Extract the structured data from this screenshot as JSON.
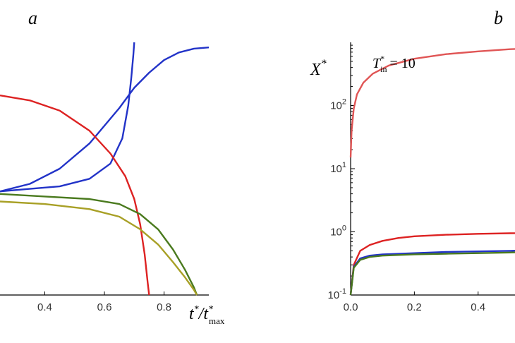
{
  "chart_data": [
    {
      "panel": "a",
      "type": "line",
      "xlabel": "t*/t*max",
      "xlim": [
        0.25,
        0.95
      ],
      "ylim": [
        0,
        1
      ],
      "x_ticks": [
        "0.4",
        "0.6",
        "0.8"
      ],
      "series": [
        {
          "color": "#2233c8",
          "x": [
            0.25,
            0.35,
            0.45,
            0.55,
            0.62,
            0.66,
            0.68,
            0.69,
            0.697,
            0.7
          ],
          "y": [
            0.41,
            0.42,
            0.43,
            0.46,
            0.52,
            0.62,
            0.75,
            0.86,
            0.95,
            1.0
          ]
        },
        {
          "color": "#2233c8",
          "x": [
            0.25,
            0.35,
            0.45,
            0.55,
            0.65,
            0.7,
            0.75,
            0.8,
            0.85,
            0.9,
            0.95
          ],
          "y": [
            0.41,
            0.44,
            0.5,
            0.6,
            0.74,
            0.82,
            0.88,
            0.93,
            0.96,
            0.975,
            0.98
          ]
        },
        {
          "color": "#dd2222",
          "x": [
            0.25,
            0.35,
            0.45,
            0.55,
            0.62,
            0.67,
            0.7,
            0.72,
            0.735,
            0.745,
            0.75
          ],
          "y": [
            0.79,
            0.77,
            0.73,
            0.65,
            0.56,
            0.47,
            0.38,
            0.28,
            0.16,
            0.05,
            0.0
          ]
        },
        {
          "color": "#4a7a1e",
          "x": [
            0.25,
            0.4,
            0.55,
            0.65,
            0.72,
            0.78,
            0.83,
            0.87,
            0.9,
            0.91
          ],
          "y": [
            0.4,
            0.39,
            0.38,
            0.36,
            0.32,
            0.26,
            0.18,
            0.1,
            0.03,
            0.0
          ]
        },
        {
          "color": "#a8a026",
          "x": [
            0.25,
            0.4,
            0.55,
            0.65,
            0.72,
            0.78,
            0.83,
            0.87,
            0.9,
            0.91
          ],
          "y": [
            0.37,
            0.36,
            0.34,
            0.31,
            0.26,
            0.2,
            0.13,
            0.07,
            0.02,
            0.0
          ]
        }
      ]
    },
    {
      "panel": "b",
      "type": "line",
      "ylabel": "X*",
      "yscale": "log",
      "annotation": "T*in = 10",
      "xlim": [
        0.0,
        0.56
      ],
      "ylim": [
        0.1,
        1000
      ],
      "x_ticks": [
        "0.0",
        "0.2",
        "0.4"
      ],
      "y_ticks": [
        "10-1",
        "100",
        "101",
        "102"
      ],
      "series": [
        {
          "color": "#e05555",
          "x": [
            0.0,
            0.003,
            0.01,
            0.02,
            0.04,
            0.07,
            0.12,
            0.2,
            0.3,
            0.4,
            0.5,
            0.56
          ],
          "y": [
            15,
            40,
            90,
            150,
            230,
            320,
            430,
            550,
            650,
            720,
            780,
            800
          ]
        },
        {
          "color": "#dd2222",
          "x": [
            0.0,
            0.01,
            0.03,
            0.06,
            0.1,
            0.15,
            0.2,
            0.3,
            0.4,
            0.5,
            0.56
          ],
          "y": [
            0.1,
            0.3,
            0.5,
            0.62,
            0.72,
            0.8,
            0.85,
            0.9,
            0.93,
            0.95,
            0.96
          ]
        },
        {
          "color": "#2233c8",
          "x": [
            0.0,
            0.01,
            0.03,
            0.06,
            0.1,
            0.2,
            0.3,
            0.4,
            0.5,
            0.56
          ],
          "y": [
            0.1,
            0.28,
            0.38,
            0.42,
            0.44,
            0.46,
            0.48,
            0.49,
            0.5,
            0.51
          ]
        },
        {
          "color": "#4a7a1e",
          "x": [
            0.0,
            0.01,
            0.03,
            0.06,
            0.1,
            0.2,
            0.3,
            0.4,
            0.5,
            0.56
          ],
          "y": [
            0.1,
            0.27,
            0.36,
            0.4,
            0.42,
            0.44,
            0.45,
            0.46,
            0.47,
            0.48
          ]
        }
      ]
    }
  ]
}
